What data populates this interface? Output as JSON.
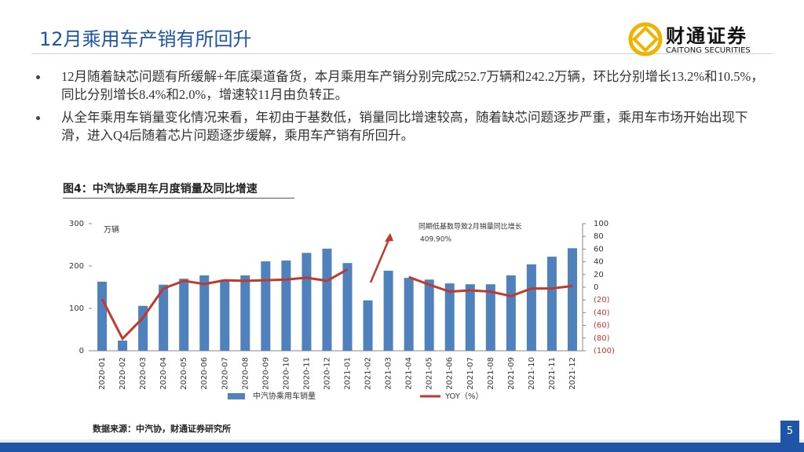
{
  "header": {
    "title": "12月乘用车产销有所回升",
    "logo_name": "财通证券",
    "logo_sub": "CAITONG SECURITIES"
  },
  "bullets": [
    "12月随着缺芯问题有所缓解+年底渠道备货，本月乘用车产销分别完成252.7万辆和242.2万辆，环比分别增长13.2%和10.5%，同比分别增长8.4%和2.0%，增速较11月由负转正。",
    "从全年乘用车销量变化情况来看，年初由于基数低，销量同比增速较高，随着缺芯问题逐步严重，乘用车市场开始出现下滑，进入Q4后随着芯片问题逐步缓解，乘用车产销有所回升。"
  ],
  "figure_title": "图4：中汽协乘用车月度销量及同比增速",
  "source": "数据来源：中汽协，财通证券研究所",
  "page_number": "5",
  "chart_data": {
    "type": "bar_line",
    "unit_label": "万辆",
    "annotation": [
      "同期低基数导致2月销量同比增长",
      "409.90%"
    ],
    "categories": [
      "2020-01",
      "2020-02",
      "2020-03",
      "2020-04",
      "2020-05",
      "2020-06",
      "2020-07",
      "2020-08",
      "2020-09",
      "2020-10",
      "2020-11",
      "2020-12",
      "2021-01",
      "2021-02",
      "2021-03",
      "2021-04",
      "2021-05",
      "2021-06",
      "2021-07",
      "2021-08",
      "2021-09",
      "2021-10",
      "2021-11",
      "2021-12"
    ],
    "series": [
      {
        "name": "中汽协乘用车销量",
        "type": "bar",
        "color": "#4f81bd",
        "values": [
          163,
          24,
          106,
          156,
          170,
          178,
          168,
          178,
          211,
          213,
          231,
          241,
          207,
          119,
          189,
          172,
          168,
          159,
          157,
          157,
          178,
          204,
          222,
          242
        ]
      },
      {
        "name": "YOY（%）",
        "type": "line",
        "axis": "y2",
        "color": "#c0392b",
        "values": [
          -18.5,
          -81,
          -48,
          -2,
          10,
          5,
          11,
          10,
          11,
          12,
          15,
          10,
          28,
          null,
          null,
          16,
          4,
          -7,
          -5,
          -7,
          -14,
          -2,
          -2,
          2
        ]
      }
    ],
    "ylim": [
      0,
      300
    ],
    "yticks": [
      0,
      100,
      200,
      300
    ],
    "y2lim": [
      -100,
      100
    ],
    "y2ticks": [
      100,
      80,
      60,
      40,
      20,
      0,
      {
        "value": -20,
        "label": "(20)"
      },
      {
        "value": -40,
        "label": "(40)"
      },
      {
        "value": -60,
        "label": "(60)"
      },
      {
        "value": -80,
        "label": "(80)"
      },
      {
        "value": -100,
        "label": "(100)"
      }
    ]
  }
}
